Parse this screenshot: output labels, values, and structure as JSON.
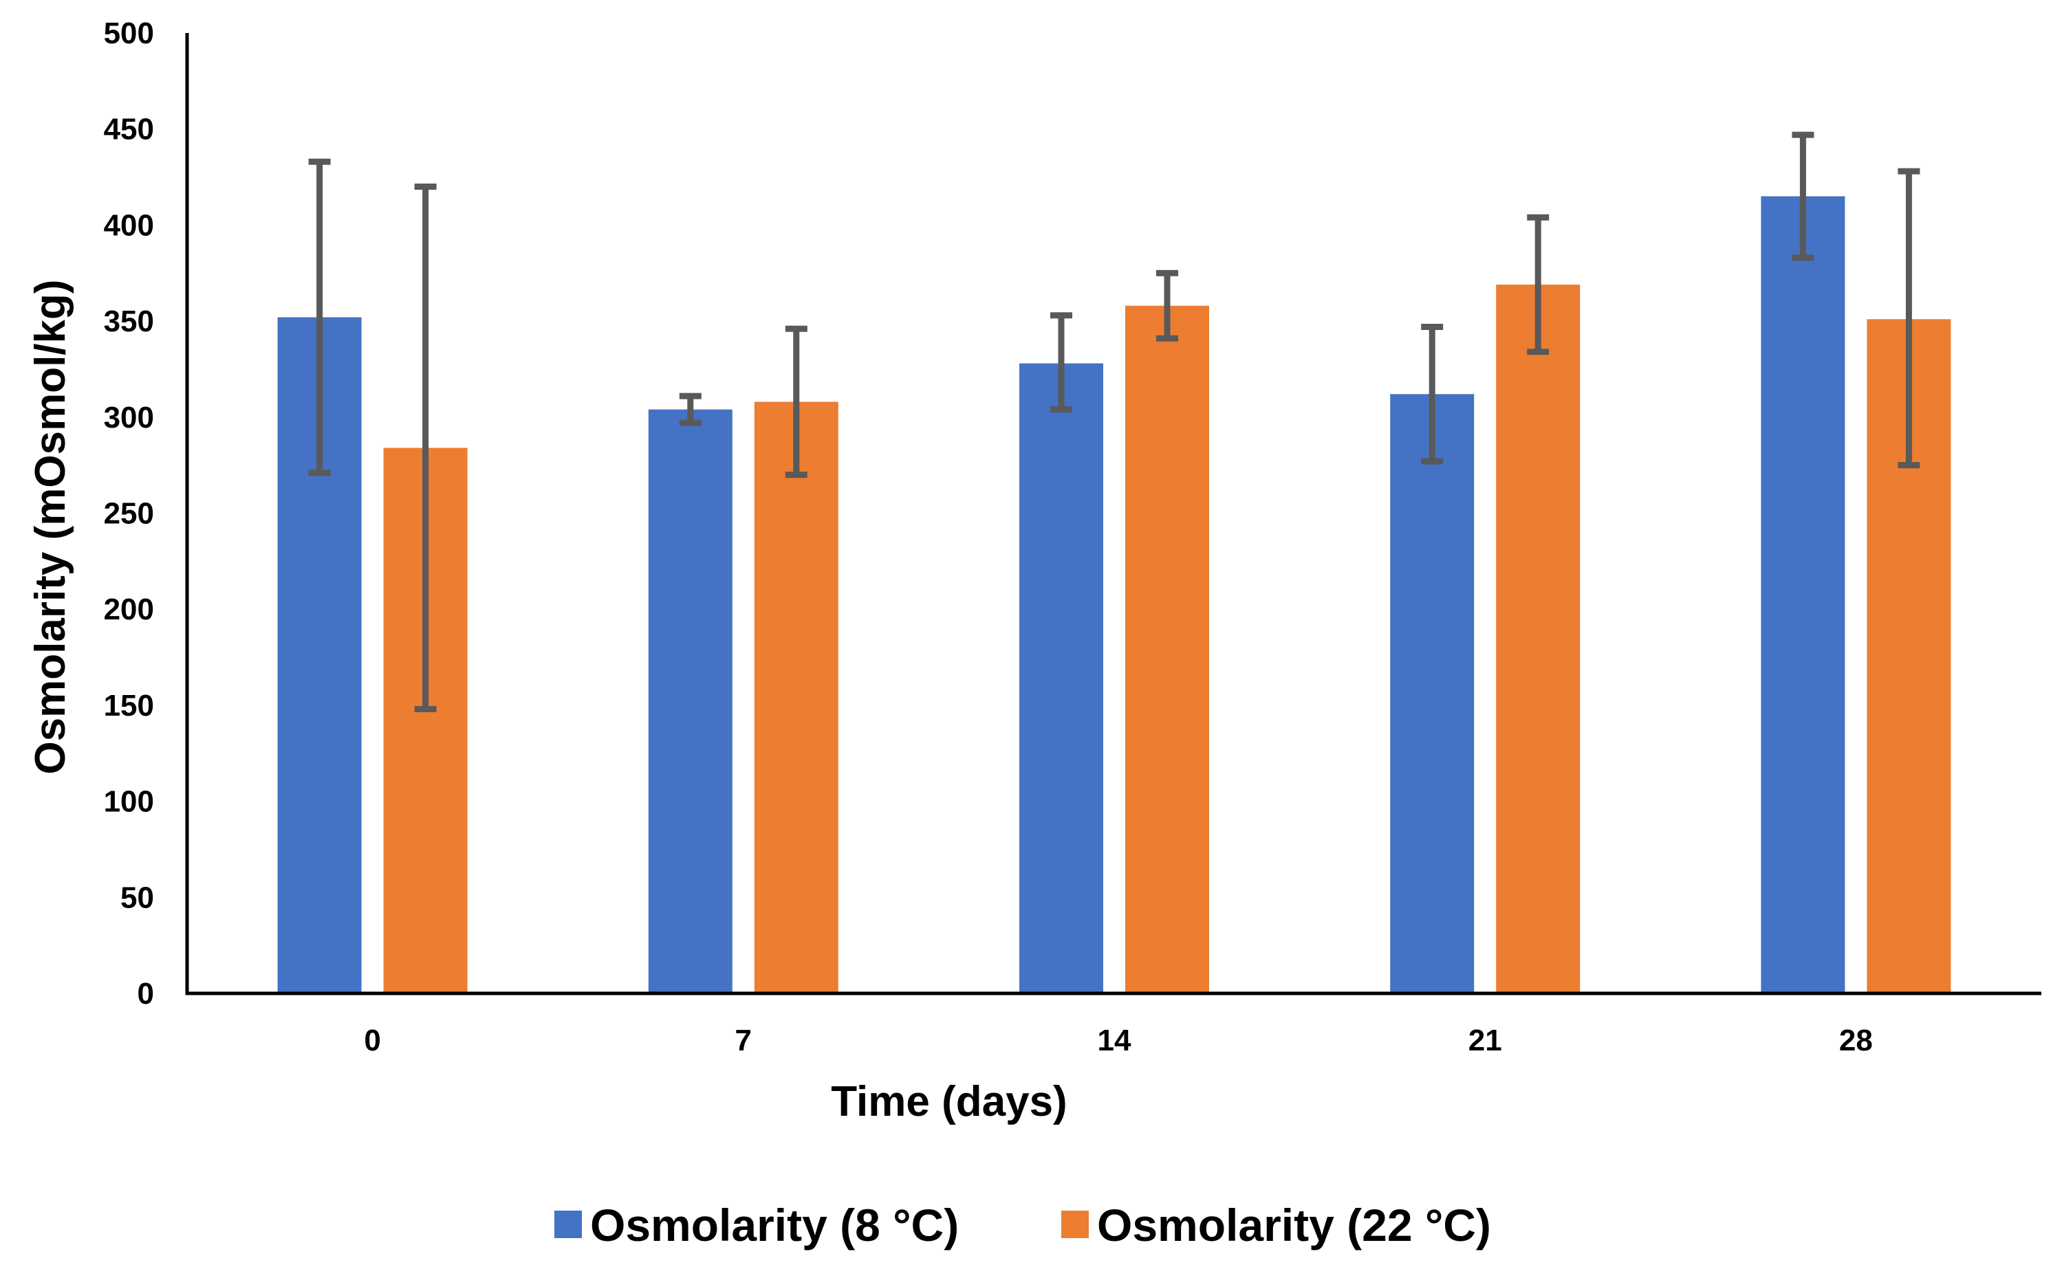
{
  "chart_data": {
    "type": "bar",
    "title": "",
    "xlabel": "Time (days)",
    "ylabel": "Osmolarity (mOsmol/kg)",
    "categories": [
      "0",
      "7",
      "14",
      "21",
      "28"
    ],
    "ylim": [
      0,
      500
    ],
    "yticks": [
      "0",
      "50",
      "100",
      "150",
      "200",
      "250",
      "300",
      "350",
      "400",
      "450",
      "500"
    ],
    "grid": false,
    "legend_position": "bottom-center",
    "series": [
      {
        "name": "Osmolarity (8 °C)",
        "color": "#4472C4",
        "values": [
          352,
          304,
          328,
          312,
          415
        ],
        "error_low": [
          271,
          297,
          304,
          277,
          383
        ],
        "error_high": [
          433,
          311,
          353,
          347,
          447
        ]
      },
      {
        "name": "Osmolarity (22 °C)",
        "color": "#ED7D31",
        "values": [
          284,
          308,
          358,
          369,
          351
        ],
        "error_low": [
          148,
          270,
          341,
          334,
          275
        ],
        "error_high": [
          420,
          346,
          375,
          404,
          428
        ]
      }
    ],
    "error_bar_color": "#595959"
  }
}
